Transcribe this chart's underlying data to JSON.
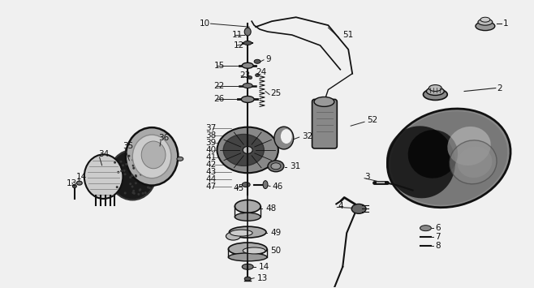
{
  "background_color": "#f0f0f0",
  "fig_width": 6.58,
  "fig_height": 3.55,
  "dpi": 100
}
